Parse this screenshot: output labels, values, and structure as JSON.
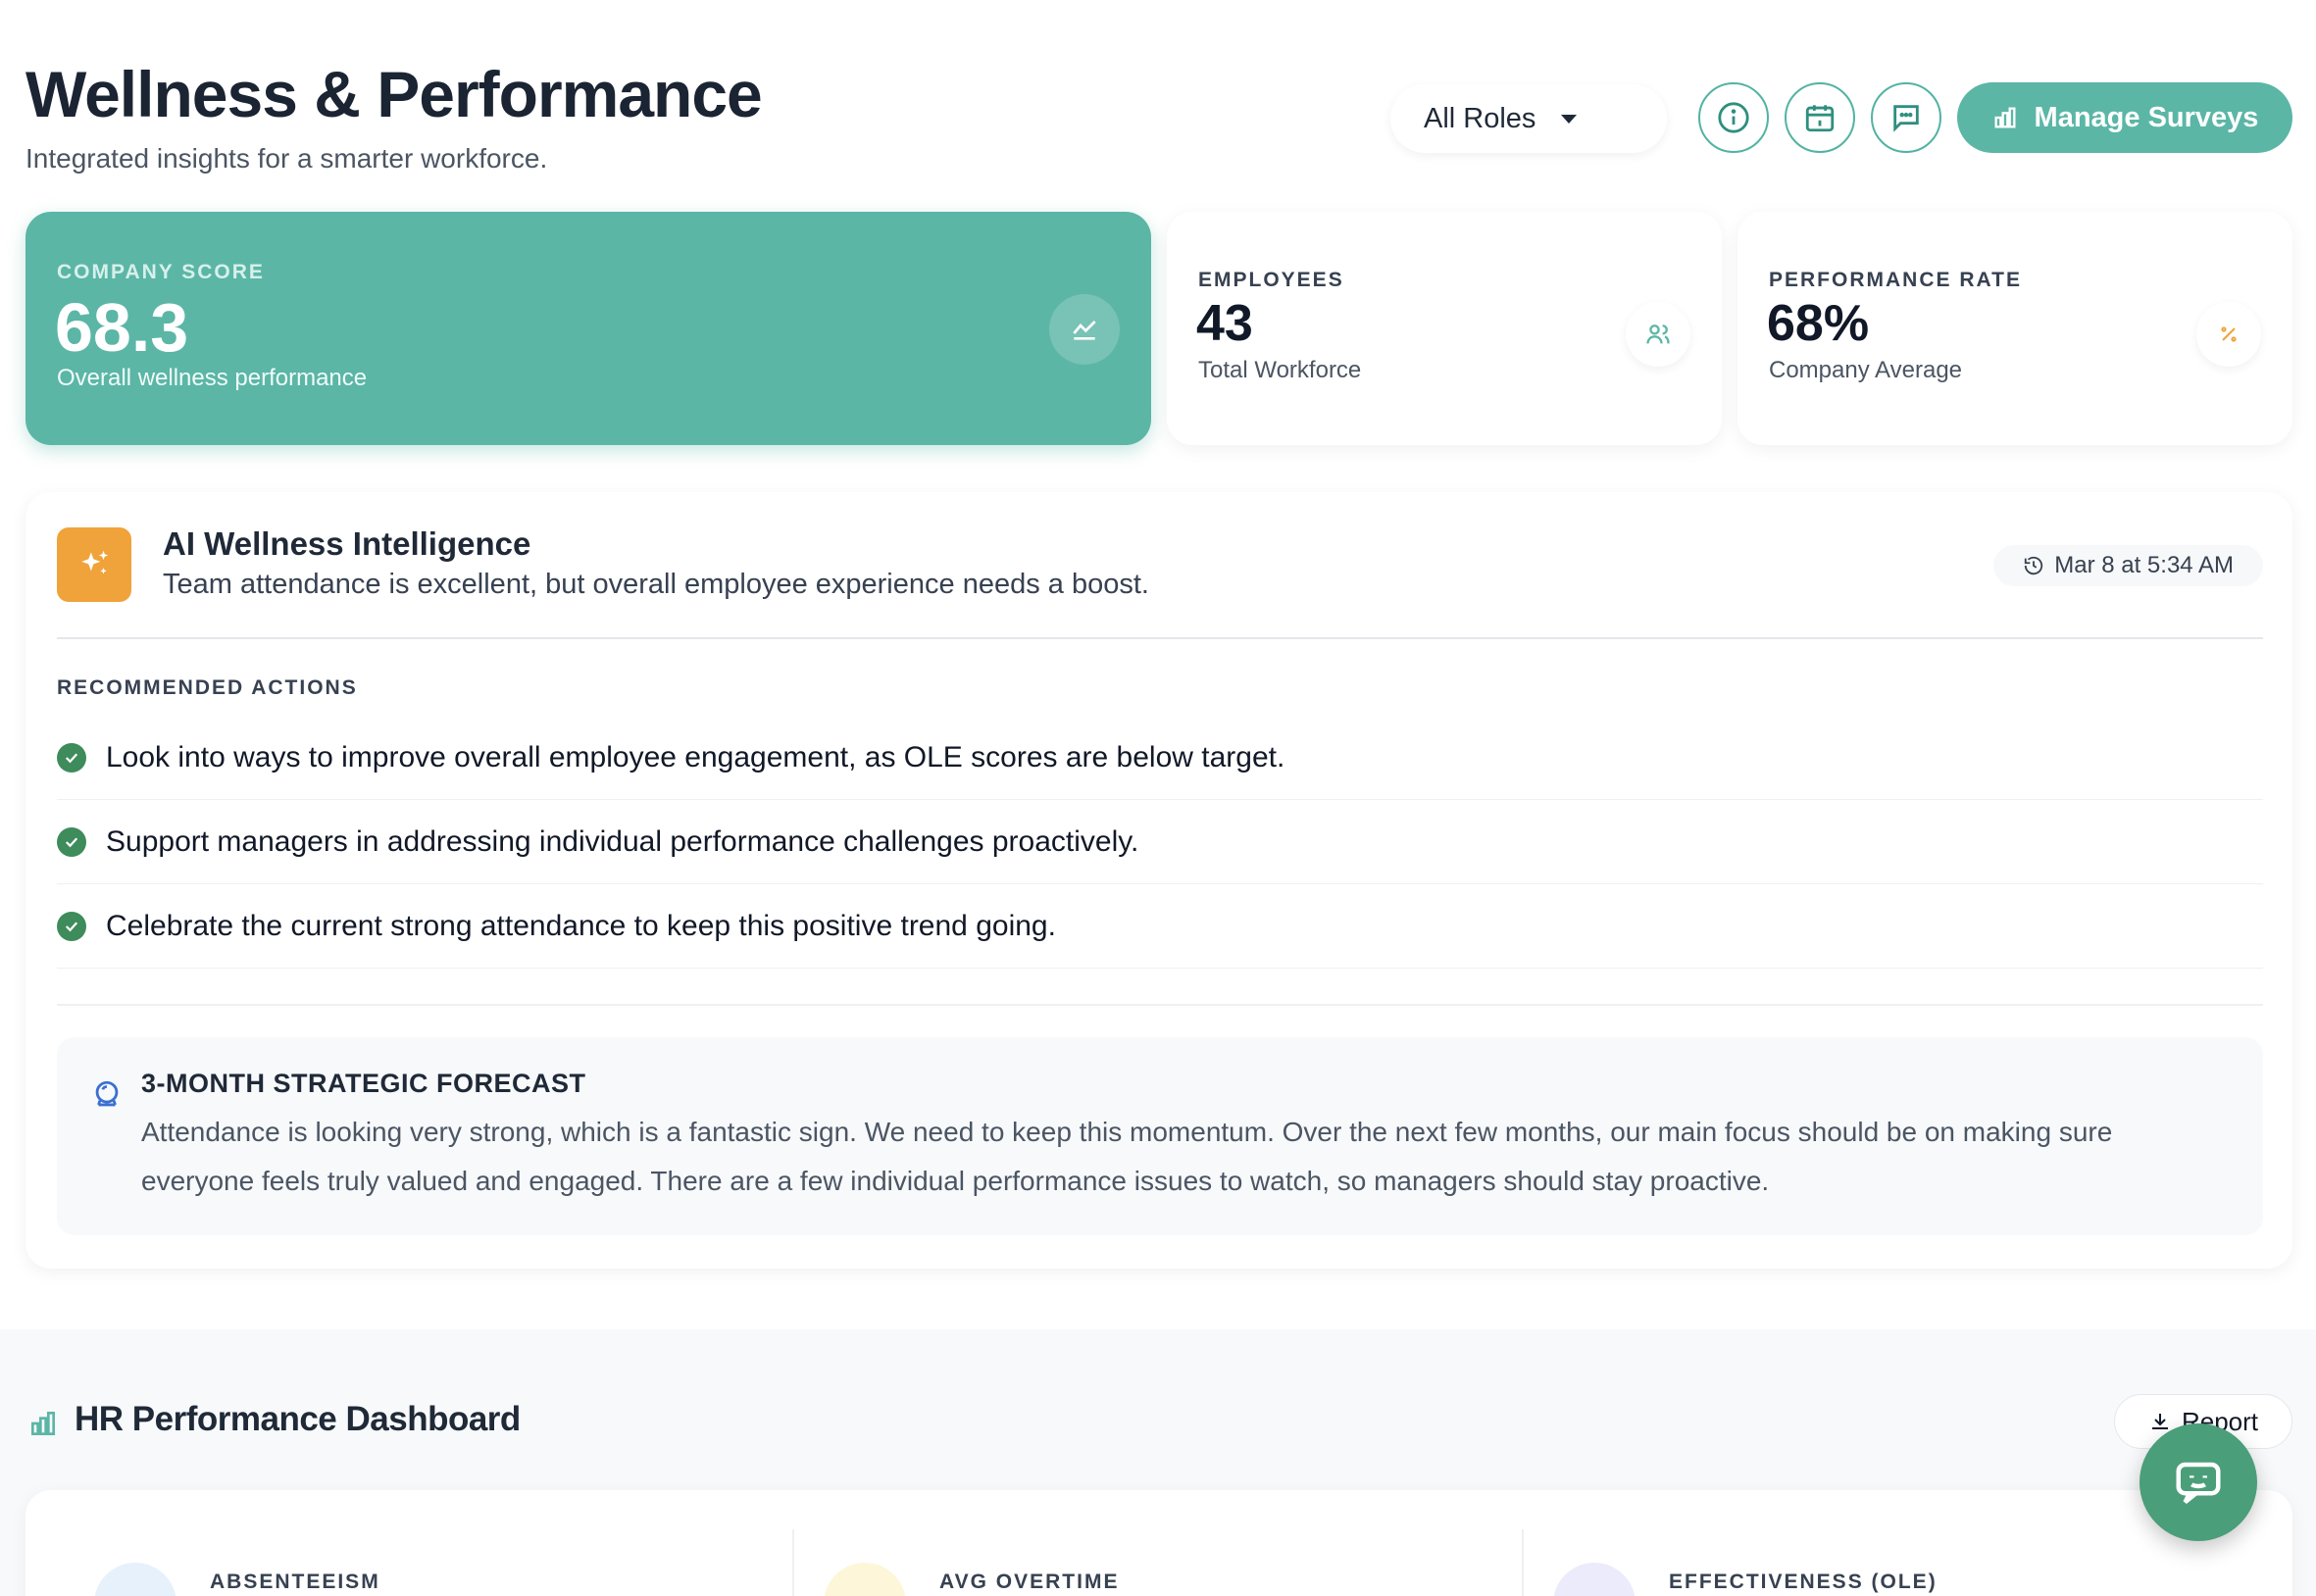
{
  "header": {
    "title": "Wellness & Performance",
    "subtitle": "Integrated insights for a smarter workforce.",
    "role_filter": "All Roles",
    "manage_label": "Manage Surveys"
  },
  "stats": {
    "company_score": {
      "label": "COMPANY SCORE",
      "value": "68.3",
      "desc": "Overall wellness performance"
    },
    "employees": {
      "label": "EMPLOYEES",
      "value": "43",
      "desc": "Total Workforce"
    },
    "performance": {
      "label": "PERFORMANCE RATE",
      "value": "68%",
      "desc": "Company Average"
    }
  },
  "ai": {
    "title": "AI Wellness Intelligence",
    "summary": "Team attendance is excellent, but overall employee experience needs a boost.",
    "timestamp": "Mar 8 at 5:34 AM",
    "rec_heading": "RECOMMENDED ACTIONS",
    "actions": [
      "Look into ways to improve overall employee engagement, as OLE scores are below target.",
      "Support managers in addressing individual performance challenges proactively.",
      "Celebrate the current strong attendance to keep this positive trend going."
    ],
    "forecast_title": "3-MONTH STRATEGIC FORECAST",
    "forecast_body": "Attendance is looking very strong, which is a fantastic sign. We need to keep this momentum. Over the next few months, our main focus should be on making sure everyone feels truly valued and engaged. There are a few individual performance issues to watch, so managers should stay proactive."
  },
  "hr": {
    "title": "HR Performance Dashboard",
    "report_label": "Report",
    "metrics": [
      "ABSENTEEISM",
      "AVG OVERTIME",
      "EFFECTIVENESS (OLE)"
    ]
  },
  "colors": {
    "accent": "#5bb6a6",
    "ai_badge": "#f0a33a",
    "check": "#3e8b5b",
    "chat": "#4a9e79"
  }
}
